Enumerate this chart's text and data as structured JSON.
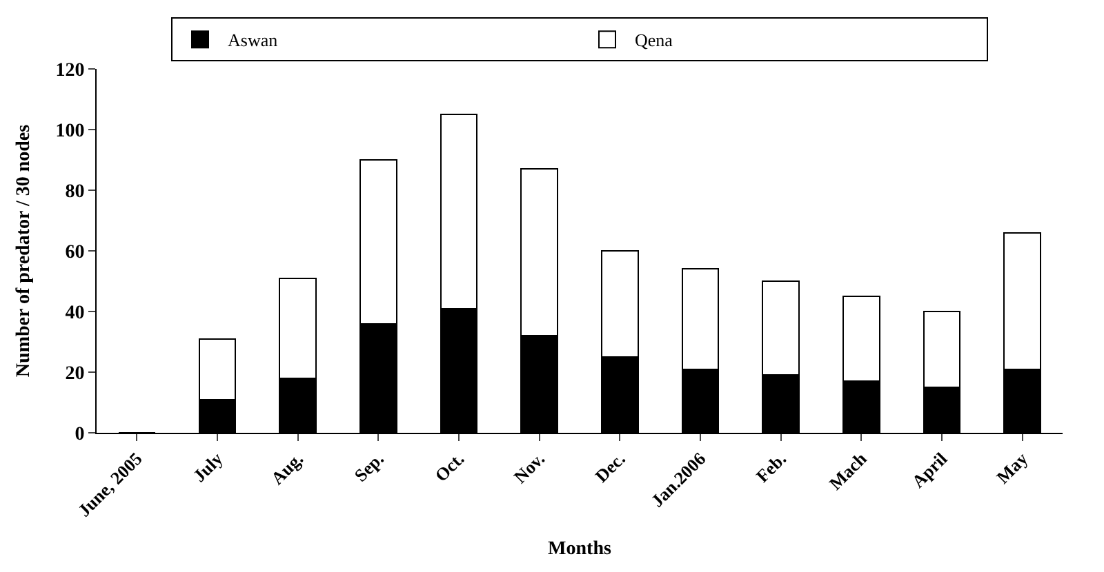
{
  "chart_data": {
    "type": "bar",
    "stacked": true,
    "xlabel": "Months",
    "ylabel": "Number of predator / 30 nodes",
    "categories": [
      "June, 2005",
      "July",
      "Aug.",
      "Sep.",
      "Oct.",
      "Nov.",
      "Dec.",
      "Jan.2006",
      "Feb.",
      "Mach",
      "April",
      "May"
    ],
    "series": [
      {
        "name": "Aswan",
        "color": "#000000",
        "values": [
          0,
          11,
          18,
          36,
          41,
          32,
          25,
          21,
          19,
          17,
          15,
          21
        ]
      },
      {
        "name": "Qena",
        "color": "#ffffff",
        "values": [
          0,
          20,
          33,
          54,
          64,
          55,
          35,
          33,
          31,
          28,
          25,
          45
        ]
      }
    ],
    "ylim": [
      0,
      120
    ],
    "yticks": [
      0,
      20,
      40,
      60,
      80,
      100,
      120
    ],
    "legend": "top"
  }
}
